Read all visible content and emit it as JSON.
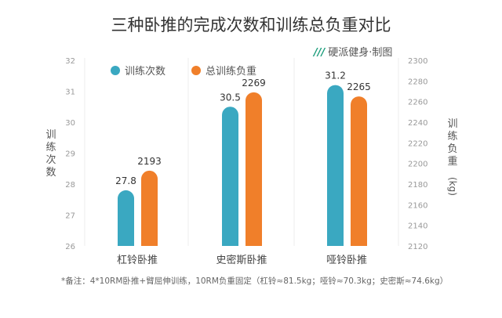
{
  "chart_data": {
    "type": "bar",
    "title": "三种卧推的完成次数和训练总负重对比",
    "categories": [
      "杠铃卧推",
      "史密斯卧推",
      "哑铃卧推"
    ],
    "series": [
      {
        "name": "训练次数",
        "axis": "left",
        "color": "#3aa8c1",
        "values": [
          27.8,
          30.5,
          31.2
        ],
        "labels": [
          "27.8",
          "30.5",
          "31.2"
        ]
      },
      {
        "name": "总训练负重",
        "axis": "right",
        "color": "#f07f2a",
        "values": [
          2193,
          2269,
          2265
        ],
        "labels": [
          "2193",
          "2269",
          "2265"
        ]
      }
    ],
    "ylabel": "训练次数",
    "ylabel_right": "训练负重(kg)",
    "ylim": [
      26,
      32
    ],
    "ylim_right": [
      2120,
      2300
    ],
    "yticks": [
      "26",
      "27",
      "28",
      "29",
      "30",
      "31",
      "32"
    ],
    "yticks_right": [
      "2120",
      "2140",
      "2160",
      "2180",
      "2200",
      "2220",
      "2240",
      "2260",
      "2280",
      "2300"
    ],
    "legend_position": "top-left",
    "grid": false
  },
  "brand": {
    "logo": "///",
    "text": "硬派健身·制图"
  },
  "note": "*备注：4*10RM卧推+臂屈伸训练，10RM负重固定（杠铃≈81.5kg；哑铃≈70.3kg；史密斯≈74.6kg）"
}
